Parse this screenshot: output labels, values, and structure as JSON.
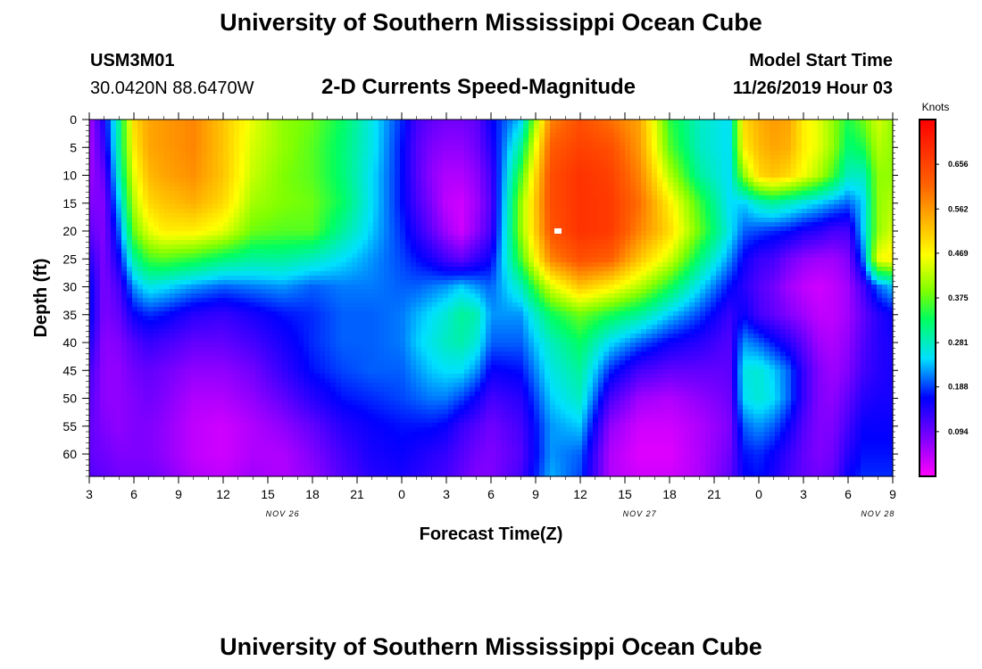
{
  "page_title": "University of Southern Mississippi Ocean Cube",
  "footer_title": "University of Southern Mississippi Ocean Cube",
  "station": {
    "id": "USM3M01",
    "coordinates": "30.0420N 88.6470W"
  },
  "model": {
    "label": "Model Start Time",
    "value": "11/26/2019 Hour 03"
  },
  "chart_data": {
    "type": "heatmap",
    "title": "2-D Currents Speed-Magnitude",
    "xlabel": "Forecast Time(Z)",
    "ylabel": "Depth (ft)",
    "x_tick_labels": [
      "3",
      "6",
      "9",
      "12",
      "15",
      "18",
      "21",
      "0",
      "3",
      "6",
      "9",
      "12",
      "15",
      "18",
      "21",
      "0",
      "3",
      "6",
      "9"
    ],
    "date_labels": [
      {
        "text": "NOV 26",
        "hour_index": 13
      },
      {
        "text": "NOV 27",
        "hour_index": 37
      },
      {
        "text": "NOV 28",
        "hour_index": 53
      }
    ],
    "x_range_hours": [
      0,
      54
    ],
    "y_ticks": [
      0,
      5,
      10,
      15,
      20,
      25,
      30,
      35,
      40,
      45,
      50,
      55,
      60
    ],
    "y_tick_labels": [
      "0",
      "5",
      "10",
      "15",
      "20",
      "25",
      "30",
      "35",
      "40",
      "45",
      "50",
      "55",
      "60"
    ],
    "ylim": [
      0,
      64
    ],
    "y_inverted": true,
    "colorbar": {
      "unit": "Knots",
      "ticks": [
        0.094,
        0.188,
        0.281,
        0.375,
        0.469,
        0.562,
        0.656
      ],
      "tick_labels": [
        "0.094",
        "0.188",
        "0.281",
        "0.375",
        "0.469",
        "0.562",
        "0.656"
      ],
      "range": [
        0.0,
        0.75
      ]
    },
    "max_marker": {
      "hour": 31.5,
      "depth": 20
    },
    "grid": false,
    "speed_field_knots": {
      "time_hours": [
        0,
        1,
        2,
        3,
        4,
        5,
        7,
        9,
        11,
        13,
        15,
        17,
        19,
        21,
        22,
        23,
        24,
        25,
        26,
        27,
        29,
        31,
        33,
        35,
        37,
        39,
        41,
        43,
        44,
        45,
        46,
        47,
        48,
        49,
        50,
        51,
        52,
        53,
        54
      ],
      "depth_ft": [
        0,
        5,
        10,
        15,
        20,
        25,
        30,
        35,
        40,
        45,
        50,
        55,
        60,
        64
      ],
      "values": [
        [
          0.05,
          0.05,
          0.06,
          0.08,
          0.1,
          0.14,
          0.17,
          0.17,
          0.15,
          0.12,
          0.11,
          0.1,
          0.1,
          0.11
        ],
        [
          0.15,
          0.13,
          0.1,
          0.08,
          0.08,
          0.08,
          0.08,
          0.08,
          0.07,
          0.07,
          0.07,
          0.08,
          0.09,
          0.1
        ],
        [
          0.3,
          0.3,
          0.28,
          0.24,
          0.2,
          0.16,
          0.12,
          0.1,
          0.08,
          0.07,
          0.07,
          0.07,
          0.08,
          0.09
        ],
        [
          0.5,
          0.48,
          0.45,
          0.42,
          0.38,
          0.3,
          0.22,
          0.16,
          0.11,
          0.09,
          0.08,
          0.08,
          0.08,
          0.09
        ],
        [
          0.55,
          0.55,
          0.53,
          0.5,
          0.45,
          0.36,
          0.26,
          0.18,
          0.13,
          0.1,
          0.09,
          0.08,
          0.08,
          0.09
        ],
        [
          0.56,
          0.56,
          0.55,
          0.52,
          0.48,
          0.37,
          0.25,
          0.17,
          0.12,
          0.09,
          0.08,
          0.07,
          0.07,
          0.08
        ],
        [
          0.58,
          0.58,
          0.57,
          0.54,
          0.48,
          0.35,
          0.22,
          0.14,
          0.1,
          0.07,
          0.05,
          0.04,
          0.04,
          0.05
        ],
        [
          0.52,
          0.52,
          0.52,
          0.5,
          0.45,
          0.32,
          0.2,
          0.13,
          0.1,
          0.07,
          0.05,
          0.03,
          0.03,
          0.04
        ],
        [
          0.45,
          0.44,
          0.43,
          0.41,
          0.38,
          0.3,
          0.21,
          0.15,
          0.12,
          0.09,
          0.07,
          0.05,
          0.05,
          0.06
        ],
        [
          0.4,
          0.4,
          0.39,
          0.39,
          0.37,
          0.3,
          0.22,
          0.17,
          0.15,
          0.13,
          0.1,
          0.07,
          0.05,
          0.05
        ],
        [
          0.38,
          0.37,
          0.37,
          0.38,
          0.37,
          0.28,
          0.2,
          0.18,
          0.18,
          0.17,
          0.14,
          0.1,
          0.08,
          0.07
        ],
        [
          0.33,
          0.32,
          0.32,
          0.33,
          0.3,
          0.25,
          0.21,
          0.2,
          0.2,
          0.19,
          0.17,
          0.14,
          0.12,
          0.11
        ],
        [
          0.26,
          0.26,
          0.25,
          0.25,
          0.24,
          0.22,
          0.21,
          0.2,
          0.2,
          0.2,
          0.18,
          0.16,
          0.15,
          0.14
        ],
        [
          0.18,
          0.17,
          0.17,
          0.17,
          0.18,
          0.19,
          0.2,
          0.21,
          0.21,
          0.2,
          0.19,
          0.17,
          0.16,
          0.15
        ],
        [
          0.12,
          0.11,
          0.11,
          0.12,
          0.14,
          0.17,
          0.2,
          0.23,
          0.24,
          0.22,
          0.2,
          0.17,
          0.15,
          0.14
        ],
        [
          0.1,
          0.08,
          0.07,
          0.08,
          0.1,
          0.15,
          0.21,
          0.25,
          0.26,
          0.24,
          0.21,
          0.17,
          0.14,
          0.13
        ],
        [
          0.09,
          0.07,
          0.05,
          0.04,
          0.06,
          0.12,
          0.22,
          0.27,
          0.28,
          0.25,
          0.21,
          0.16,
          0.13,
          0.12
        ],
        [
          0.09,
          0.07,
          0.05,
          0.03,
          0.03,
          0.1,
          0.24,
          0.3,
          0.29,
          0.25,
          0.19,
          0.13,
          0.11,
          0.1
        ],
        [
          0.1,
          0.09,
          0.07,
          0.06,
          0.07,
          0.13,
          0.22,
          0.29,
          0.27,
          0.22,
          0.16,
          0.11,
          0.09,
          0.08
        ],
        [
          0.16,
          0.14,
          0.12,
          0.11,
          0.12,
          0.16,
          0.2,
          0.22,
          0.2,
          0.16,
          0.12,
          0.09,
          0.08,
          0.08
        ],
        [
          0.24,
          0.3,
          0.36,
          0.4,
          0.4,
          0.36,
          0.28,
          0.22,
          0.2,
          0.17,
          0.14,
          0.12,
          0.11,
          0.12
        ],
        [
          0.58,
          0.62,
          0.64,
          0.64,
          0.63,
          0.58,
          0.44,
          0.33,
          0.28,
          0.26,
          0.24,
          0.22,
          0.22,
          0.23
        ],
        [
          0.64,
          0.66,
          0.68,
          0.68,
          0.68,
          0.64,
          0.52,
          0.38,
          0.33,
          0.3,
          0.28,
          0.24,
          0.2,
          0.19
        ],
        [
          0.6,
          0.64,
          0.66,
          0.67,
          0.67,
          0.62,
          0.48,
          0.34,
          0.25,
          0.18,
          0.12,
          0.07,
          0.05,
          0.05
        ],
        [
          0.55,
          0.56,
          0.58,
          0.6,
          0.58,
          0.52,
          0.42,
          0.3,
          0.2,
          0.12,
          0.06,
          0.03,
          0.02,
          0.03
        ],
        [
          0.35,
          0.37,
          0.42,
          0.48,
          0.5,
          0.44,
          0.34,
          0.24,
          0.16,
          0.1,
          0.05,
          0.03,
          0.02,
          0.03
        ],
        [
          0.28,
          0.28,
          0.3,
          0.36,
          0.38,
          0.32,
          0.25,
          0.19,
          0.14,
          0.1,
          0.07,
          0.05,
          0.05,
          0.05
        ],
        [
          0.25,
          0.25,
          0.25,
          0.25,
          0.26,
          0.22,
          0.17,
          0.13,
          0.11,
          0.1,
          0.09,
          0.08,
          0.09,
          0.1
        ],
        [
          0.5,
          0.48,
          0.4,
          0.24,
          0.2,
          0.16,
          0.14,
          0.16,
          0.22,
          0.26,
          0.25,
          0.2,
          0.17,
          0.16
        ],
        [
          0.54,
          0.53,
          0.5,
          0.28,
          0.19,
          0.13,
          0.11,
          0.12,
          0.2,
          0.27,
          0.27,
          0.22,
          0.18,
          0.17
        ],
        [
          0.56,
          0.55,
          0.52,
          0.3,
          0.18,
          0.12,
          0.09,
          0.1,
          0.17,
          0.24,
          0.25,
          0.2,
          0.16,
          0.15
        ],
        [
          0.55,
          0.54,
          0.5,
          0.28,
          0.17,
          0.09,
          0.06,
          0.08,
          0.14,
          0.2,
          0.2,
          0.16,
          0.13,
          0.12
        ],
        [
          0.48,
          0.48,
          0.46,
          0.26,
          0.15,
          0.07,
          0.04,
          0.06,
          0.1,
          0.13,
          0.13,
          0.11,
          0.1,
          0.1
        ],
        [
          0.45,
          0.45,
          0.42,
          0.24,
          0.14,
          0.06,
          0.03,
          0.04,
          0.06,
          0.08,
          0.08,
          0.08,
          0.08,
          0.09
        ],
        [
          0.4,
          0.4,
          0.36,
          0.22,
          0.12,
          0.06,
          0.04,
          0.04,
          0.05,
          0.06,
          0.07,
          0.08,
          0.09,
          0.1
        ],
        [
          0.34,
          0.32,
          0.28,
          0.2,
          0.12,
          0.08,
          0.06,
          0.06,
          0.07,
          0.08,
          0.1,
          0.12,
          0.14,
          0.16
        ],
        [
          0.38,
          0.34,
          0.28,
          0.24,
          0.24,
          0.2,
          0.12,
          0.1,
          0.11,
          0.12,
          0.14,
          0.16,
          0.17,
          0.18
        ],
        [
          0.44,
          0.42,
          0.4,
          0.4,
          0.4,
          0.46,
          0.2,
          0.14,
          0.14,
          0.14,
          0.15,
          0.16,
          0.17,
          0.18
        ],
        [
          0.4,
          0.4,
          0.4,
          0.42,
          0.44,
          0.48,
          0.24,
          0.16,
          0.15,
          0.15,
          0.15,
          0.16,
          0.17,
          0.18
        ]
      ]
    }
  }
}
